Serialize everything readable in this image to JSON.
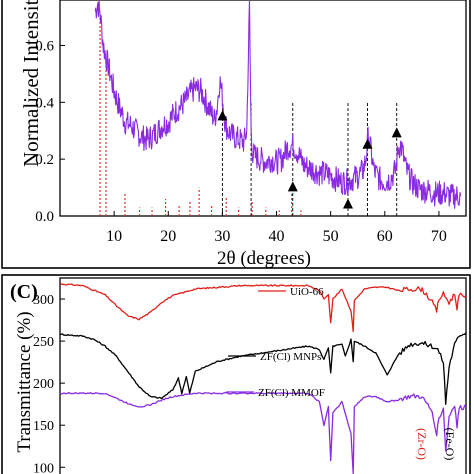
{
  "chart_data": [
    {
      "type": "line",
      "panel_label": "",
      "xlabel": "2θ (degrees)",
      "ylabel": "Normalized Intensity",
      "xlim": [
        0,
        75
      ],
      "ylim": [
        0,
        0.76
      ],
      "xticks": [
        10,
        20,
        30,
        40,
        50,
        60,
        70
      ],
      "yticks": [
        0.0,
        0.2,
        0.4,
        0.6
      ],
      "ytick_labels": [
        "0.0",
        "0.2",
        "0.4",
        "0.6"
      ],
      "grid": false,
      "series": [
        {
          "color": "#8a2be2",
          "x": [
            6.5,
            7,
            7.5,
            8,
            8.5,
            9,
            9.5,
            10,
            10.5,
            11,
            11.5,
            12,
            13,
            14,
            15,
            16,
            17,
            18,
            19,
            20,
            21,
            22,
            23,
            24,
            25,
            26,
            27,
            28,
            28.5,
            29,
            29.5,
            30,
            30.5,
            31,
            32,
            33,
            34,
            34.5,
            35,
            35.3,
            35.6,
            36,
            37,
            38,
            39,
            40,
            41,
            42,
            43,
            44,
            45,
            46,
            47,
            48,
            49,
            50,
            51,
            52,
            53,
            54,
            55,
            56,
            56.5,
            57,
            57.5,
            58,
            59,
            60,
            61,
            62,
            62.5,
            63,
            64,
            65,
            66,
            67,
            68,
            69,
            70,
            71,
            72,
            73,
            74
          ],
          "y": [
            0.72,
            0.75,
            0.7,
            0.6,
            0.56,
            0.52,
            0.48,
            0.44,
            0.41,
            0.38,
            0.36,
            0.33,
            0.32,
            0.3,
            0.28,
            0.27,
            0.28,
            0.3,
            0.32,
            0.33,
            0.36,
            0.38,
            0.4,
            0.43,
            0.45,
            0.44,
            0.4,
            0.36,
            0.34,
            0.38,
            0.48,
            0.42,
            0.33,
            0.3,
            0.28,
            0.27,
            0.26,
            0.3,
            0.74,
            0.3,
            0.22,
            0.21,
            0.2,
            0.19,
            0.2,
            0.19,
            0.2,
            0.24,
            0.25,
            0.22,
            0.18,
            0.17,
            0.16,
            0.15,
            0.15,
            0.14,
            0.13,
            0.12,
            0.12,
            0.13,
            0.14,
            0.16,
            0.2,
            0.29,
            0.22,
            0.16,
            0.13,
            0.12,
            0.13,
            0.16,
            0.24,
            0.25,
            0.16,
            0.12,
            0.1,
            0.09,
            0.09,
            0.08,
            0.08,
            0.08,
            0.07,
            0.07,
            0.07
          ]
        }
      ],
      "reference_lines": {
        "color": "#e03030",
        "style": "dotted",
        "x": [
          7.4,
          8.5,
          12,
          14.7,
          17,
          19.5,
          22,
          24,
          25.7,
          28,
          30.7,
          33,
          35.5,
          38,
          40.5,
          42.8,
          44.5
        ],
        "y": [
          0.72,
          0.55,
          0.08,
          0.03,
          0.03,
          0.06,
          0.04,
          0.05,
          0.1,
          0.04,
          0.07,
          0.03,
          0.05,
          0.03,
          0.02,
          0.08,
          0.02
        ]
      },
      "markers": {
        "shape": "triangle",
        "color": "#000000",
        "points": [
          {
            "x": 30,
            "y": 0.34
          },
          {
            "x": 43,
            "y": 0.09
          },
          {
            "x": 53.2,
            "y": 0.03
          },
          {
            "x": 56.8,
            "y": 0.24
          },
          {
            "x": 62.2,
            "y": 0.28
          }
        ]
      },
      "guide_lines": {
        "color": "#000000",
        "style": "dashed",
        "x": [
          30,
          35.3,
          43,
          53.2,
          56.8,
          62.2
        ]
      }
    },
    {
      "type": "line",
      "panel_label": "(C)",
      "xlabel": "",
      "ylabel": "Transmittance (%)",
      "xlim": [
        4000,
        400
      ],
      "ylim": [
        92,
        325
      ],
      "yticks": [
        100,
        150,
        200,
        250,
        300
      ],
      "ytick_labels": [
        "100",
        "150",
        "200",
        "250",
        "300"
      ],
      "grid": false,
      "legend_placement": "inline",
      "series": [
        {
          "name": "UiO-66",
          "color": "#e0201a",
          "x": [
            4000,
            3800,
            3600,
            3500,
            3400,
            3300,
            3200,
            3100,
            3000,
            2800,
            2600,
            2400,
            2200,
            2000,
            1800,
            1700,
            1660,
            1620,
            1600,
            1580,
            1500,
            1420,
            1400,
            1390,
            1300,
            1200,
            1100,
            1000,
            900,
            800,
            750,
            700,
            660,
            640,
            600,
            550,
            500,
            480,
            460,
            400
          ],
          "y": [
            318,
            316,
            305,
            292,
            280,
            276,
            284,
            296,
            304,
            312,
            314,
            316,
            316,
            316,
            316,
            310,
            300,
            306,
            272,
            300,
            312,
            286,
            262,
            298,
            312,
            314,
            314,
            310,
            312,
            312,
            306,
            296,
            286,
            300,
            306,
            296,
            306,
            290,
            304,
            304
          ]
        },
        {
          "name": "ZF(Cl) MNPs",
          "color": "#000000",
          "x": [
            4000,
            3800,
            3700,
            3600,
            3500,
            3400,
            3300,
            3200,
            3100,
            3000,
            2950,
            2920,
            2880,
            2850,
            2800,
            2600,
            2400,
            2200,
            2000,
            1800,
            1700,
            1660,
            1620,
            1600,
            1580,
            1500,
            1470,
            1420,
            1400,
            1390,
            1300,
            1200,
            1100,
            1050,
            1000,
            900,
            800,
            700,
            650,
            600,
            580,
            550,
            500,
            450,
            400
          ],
          "y": [
            258,
            256,
            252,
            244,
            232,
            214,
            196,
            184,
            182,
            192,
            206,
            188,
            208,
            188,
            214,
            226,
            232,
            236,
            240,
            244,
            240,
            228,
            242,
            212,
            244,
            246,
            232,
            252,
            226,
            250,
            244,
            236,
            210,
            222,
            234,
            246,
            248,
            244,
            240,
            225,
            176,
            220,
            246,
            258,
            260
          ]
        },
        {
          "name": "ZF(Cl) MMOF",
          "color": "#8a2be2",
          "x": [
            4000,
            3800,
            3600,
            3500,
            3400,
            3300,
            3200,
            3100,
            3000,
            2800,
            2600,
            2400,
            2200,
            2000,
            1800,
            1700,
            1660,
            1620,
            1600,
            1580,
            1500,
            1420,
            1400,
            1390,
            1300,
            1200,
            1100,
            1000,
            900,
            800,
            750,
            700,
            660,
            640,
            600,
            580,
            550,
            500,
            480,
            460,
            400
          ],
          "y": [
            188,
            188,
            188,
            182,
            176,
            172,
            174,
            180,
            184,
            188,
            188,
            188,
            188,
            188,
            188,
            178,
            150,
            172,
            108,
            165,
            178,
            140,
            92,
            172,
            184,
            184,
            178,
            180,
            184,
            184,
            176,
            166,
            140,
            158,
            170,
            118,
            160,
            175,
            148,
            170,
            172
          ]
        }
      ],
      "annotations": [
        {
          "text": "(Zr-O)",
          "color": "#e0201a"
        },
        {
          "text": "(Fe-O)",
          "color": "#000000"
        }
      ]
    }
  ]
}
